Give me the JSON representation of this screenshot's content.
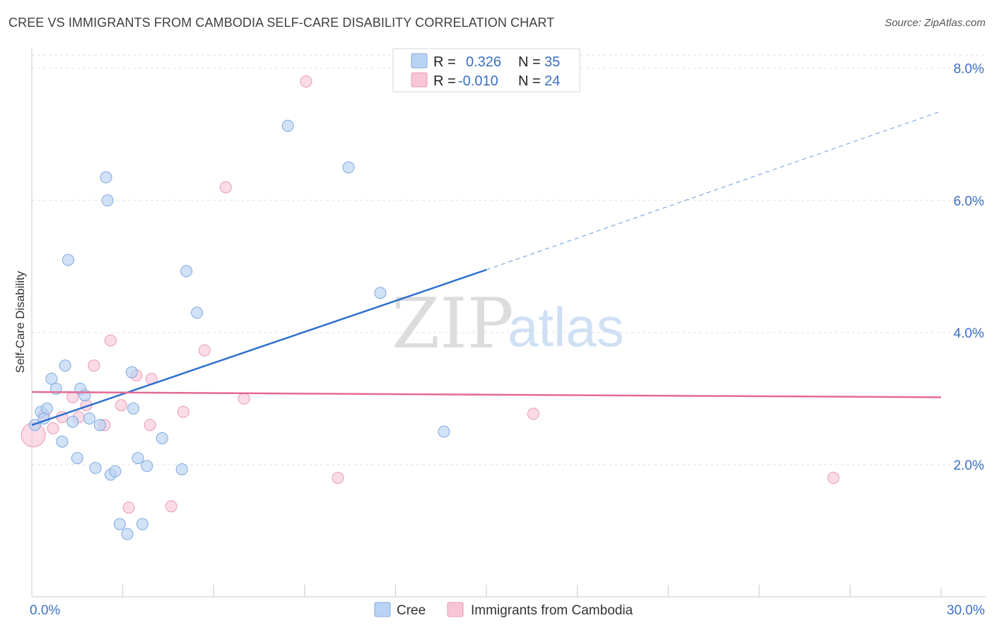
{
  "header": {
    "title": "CREE VS IMMIGRANTS FROM CAMBODIA SELF-CARE DISABILITY CORRELATION CHART",
    "source": "Source: ZipAtlas.com"
  },
  "watermark": {
    "zip": "ZIP",
    "atlas": "atlas"
  },
  "colors": {
    "cree_fill": "#b9d3f3",
    "cree_stroke": "#7fa8de",
    "cree_line": "#2d6fcf",
    "camb_fill": "#f8c5d5",
    "camb_stroke": "#e99ab4",
    "camb_line": "#e46a94",
    "axis_label": "#3a6fc4",
    "grid": "#e2e2e2"
  },
  "legend": {
    "rows": [
      {
        "r_label": "R =",
        "r_value": "0.326",
        "n_label": "N =",
        "n_value": "35"
      },
      {
        "r_label": "R =",
        "r_value": "-0.010",
        "n_label": "N =",
        "n_value": "24"
      }
    ]
  },
  "chart_data": {
    "type": "scatter",
    "title": "CREE VS IMMIGRANTS FROM CAMBODIA SELF-CARE DISABILITY CORRELATION CHART",
    "xlabel": "",
    "ylabel": "Self-Care Disability",
    "xlim": [
      0,
      30
    ],
    "ylim": [
      0,
      8.2
    ],
    "x_tick_labels": [
      "0.0%",
      "30.0%"
    ],
    "y_ticks": [
      2,
      4,
      6,
      8
    ],
    "y_tick_labels": [
      "2.0%",
      "4.0%",
      "6.0%",
      "8.0%"
    ],
    "grid": true,
    "legend_position": "top-center",
    "series": [
      {
        "name": "Cree",
        "r": 0.326,
        "n": 35,
        "trend": {
          "x0": 0,
          "y0": 2.6,
          "x1": 15,
          "y1": 4.95,
          "dashed_to_x": 30,
          "dashed_to_y": 7.35
        },
        "points": [
          [
            0.1,
            2.6
          ],
          [
            0.3,
            2.8
          ],
          [
            0.4,
            2.7
          ],
          [
            0.5,
            2.85
          ],
          [
            0.65,
            3.3
          ],
          [
            0.8,
            3.15
          ],
          [
            1.0,
            2.35
          ],
          [
            1.1,
            3.5
          ],
          [
            1.2,
            5.1
          ],
          [
            1.35,
            2.65
          ],
          [
            1.5,
            2.1
          ],
          [
            1.6,
            3.15
          ],
          [
            1.75,
            3.05
          ],
          [
            1.9,
            2.7
          ],
          [
            2.1,
            1.95
          ],
          [
            2.25,
            2.6
          ],
          [
            2.45,
            6.35
          ],
          [
            2.5,
            6.0
          ],
          [
            2.6,
            1.85
          ],
          [
            2.75,
            1.9
          ],
          [
            2.9,
            1.1
          ],
          [
            3.15,
            0.95
          ],
          [
            3.3,
            3.4
          ],
          [
            3.35,
            2.85
          ],
          [
            3.5,
            2.1
          ],
          [
            3.65,
            1.1
          ],
          [
            3.8,
            1.98
          ],
          [
            4.3,
            2.4
          ],
          [
            4.95,
            1.93
          ],
          [
            5.1,
            4.93
          ],
          [
            5.45,
            4.3
          ],
          [
            8.45,
            7.13
          ],
          [
            10.45,
            6.5
          ],
          [
            11.5,
            4.6
          ],
          [
            13.6,
            2.5
          ]
        ]
      },
      {
        "name": "Immigrants from Cambodia",
        "r": -0.01,
        "n": 24,
        "trend": {
          "x0": 0,
          "y0": 3.1,
          "x1": 30,
          "y1": 3.02
        },
        "points": [
          [
            0.05,
            2.45
          ],
          [
            0.4,
            2.75
          ],
          [
            0.7,
            2.55
          ],
          [
            1.0,
            2.72
          ],
          [
            1.35,
            3.02
          ],
          [
            1.55,
            2.72
          ],
          [
            1.8,
            2.9
          ],
          [
            2.05,
            3.5
          ],
          [
            2.4,
            2.6
          ],
          [
            2.6,
            3.88
          ],
          [
            2.95,
            2.9
          ],
          [
            3.2,
            1.35
          ],
          [
            3.45,
            3.35
          ],
          [
            3.9,
            2.6
          ],
          [
            3.95,
            3.3
          ],
          [
            4.6,
            1.37
          ],
          [
            5.0,
            2.8
          ],
          [
            5.7,
            3.73
          ],
          [
            6.4,
            6.2
          ],
          [
            7.0,
            3.0
          ],
          [
            9.05,
            7.8
          ],
          [
            10.1,
            1.8
          ],
          [
            16.55,
            2.77
          ],
          [
            26.45,
            1.8
          ]
        ]
      }
    ]
  },
  "bottom_legend": {
    "items": [
      "Cree",
      "Immigrants from Cambodia"
    ]
  }
}
